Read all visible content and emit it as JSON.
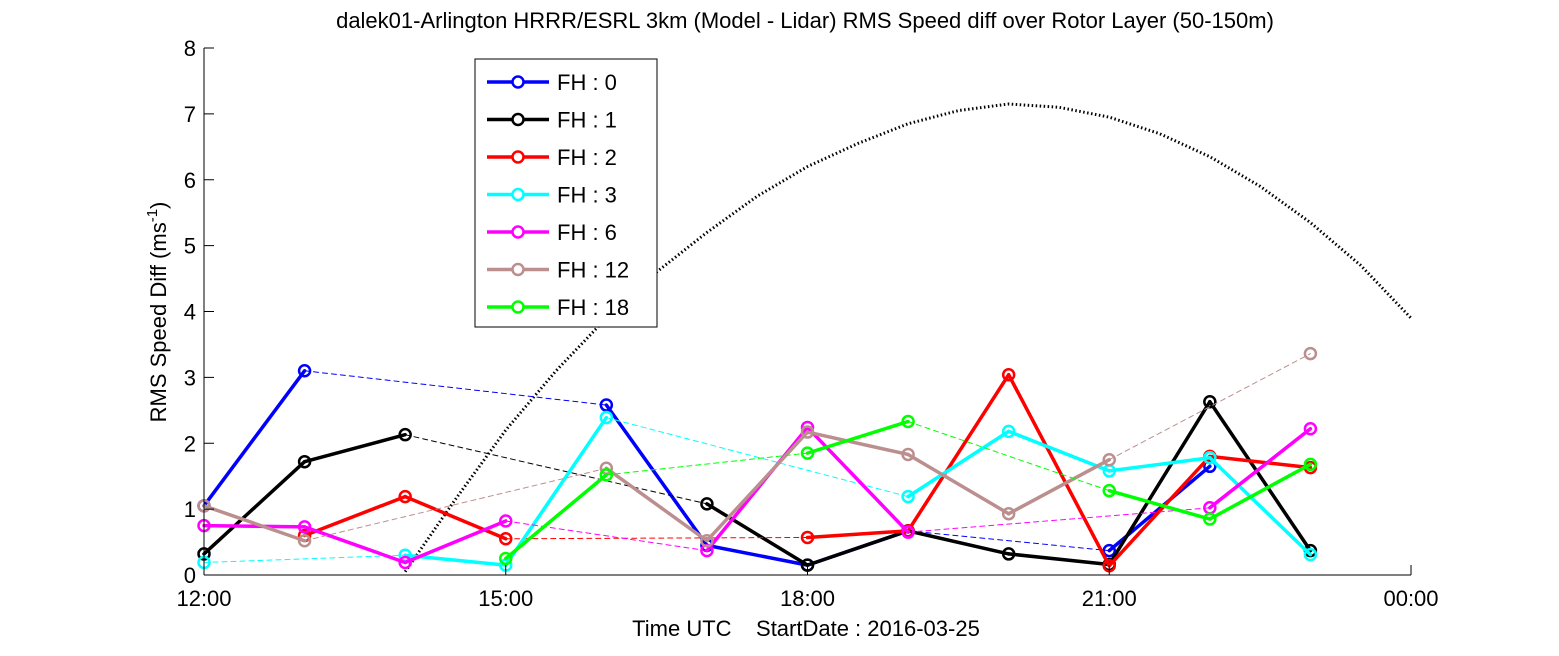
{
  "chart_data": {
    "type": "line",
    "title": "dalek01-Arlington HRRR/ESRL 3km (Model - Lidar) RMS Speed diff over Rotor Layer (50-150m)",
    "xlabel": "Time UTC    StartDate : 2016-03-25",
    "ylabel": "RMS Speed Diff (ms",
    "ylabel_sup": "-1",
    "ylabel_tail": ")",
    "x_unit": "hours UTC",
    "xlim": [
      12,
      24
    ],
    "ylim": [
      0,
      8
    ],
    "x_ticks": [
      {
        "value": 12,
        "label": "12:00"
      },
      {
        "value": 15,
        "label": "15:00"
      },
      {
        "value": 18,
        "label": "18:00"
      },
      {
        "value": 21,
        "label": "21:00"
      },
      {
        "value": 24,
        "label": "00:00"
      }
    ],
    "y_ticks": [
      {
        "value": 0,
        "label": "0"
      },
      {
        "value": 1,
        "label": "1"
      },
      {
        "value": 2,
        "label": "2"
      },
      {
        "value": 3,
        "label": "3"
      },
      {
        "value": 4,
        "label": "4"
      },
      {
        "value": 5,
        "label": "5"
      },
      {
        "value": 6,
        "label": "6"
      },
      {
        "value": 7,
        "label": "7"
      },
      {
        "value": 8,
        "label": "8"
      }
    ],
    "legend_position": "top-left",
    "grid": false,
    "series": [
      {
        "name": "FH : 0",
        "color": "#0000ff",
        "x": [
          12,
          13,
          16,
          17,
          18,
          19,
          21,
          22,
          23
        ],
        "y": [
          1.05,
          3.1,
          2.58,
          0.45,
          0.15,
          0.67,
          0.37,
          1.65,
          null
        ],
        "dashed_gaps": true
      },
      {
        "name": "FH : 1",
        "color": "#000000",
        "x": [
          12,
          13,
          14,
          17,
          18,
          19,
          20,
          21,
          22,
          23
        ],
        "y": [
          0.32,
          1.72,
          2.13,
          1.08,
          0.15,
          0.67,
          0.32,
          0.16,
          2.63,
          0.37
        ]
      },
      {
        "name": "FH : 2",
        "color": "#ff0000",
        "x": [
          13,
          14,
          15,
          18,
          19,
          20,
          21,
          22,
          23
        ],
        "y": [
          0.6,
          1.19,
          0.55,
          0.57,
          0.67,
          3.04,
          0.14,
          1.8,
          1.63
        ]
      },
      {
        "name": "FH : 3",
        "color": "#00ffff",
        "x": [
          12,
          14,
          15,
          16,
          19,
          20,
          21,
          22,
          23
        ],
        "y": [
          0.19,
          0.3,
          0.15,
          2.39,
          1.19,
          2.18,
          1.58,
          1.78,
          0.31
        ]
      },
      {
        "name": "FH : 6",
        "color": "#ff00ff",
        "x": [
          12,
          13,
          14,
          15,
          17,
          18,
          19,
          22,
          23
        ],
        "y": [
          0.75,
          0.73,
          0.19,
          0.82,
          0.37,
          2.24,
          0.65,
          1.02,
          2.22
        ]
      },
      {
        "name": "FH : 12",
        "color": "#bc8f8f",
        "x": [
          12,
          13,
          16,
          17,
          18,
          19,
          20,
          21,
          23
        ],
        "y": [
          1.05,
          0.52,
          1.62,
          0.52,
          2.17,
          1.83,
          0.93,
          1.75,
          3.36
        ]
      },
      {
        "name": "FH : 18",
        "color": "#00ff00",
        "x": [
          15,
          16,
          18,
          19,
          21,
          22,
          23
        ],
        "y": [
          0.25,
          1.52,
          1.85,
          2.33,
          1.28,
          0.85,
          1.68
        ]
      }
    ],
    "reference_curve": {
      "style": "dotted",
      "color": "#000000",
      "x": [
        14,
        14.5,
        15,
        15.5,
        16,
        16.5,
        17,
        17.5,
        18,
        18.5,
        19,
        19.5,
        20,
        20.5,
        21,
        21.5,
        22,
        22.5,
        23,
        23.5,
        24
      ],
      "y": [
        0.05,
        1.15,
        2.2,
        3.1,
        3.9,
        4.6,
        5.2,
        5.75,
        6.2,
        6.55,
        6.85,
        7.05,
        7.15,
        7.1,
        6.95,
        6.7,
        6.35,
        5.9,
        5.35,
        4.7,
        3.9
      ]
    }
  }
}
